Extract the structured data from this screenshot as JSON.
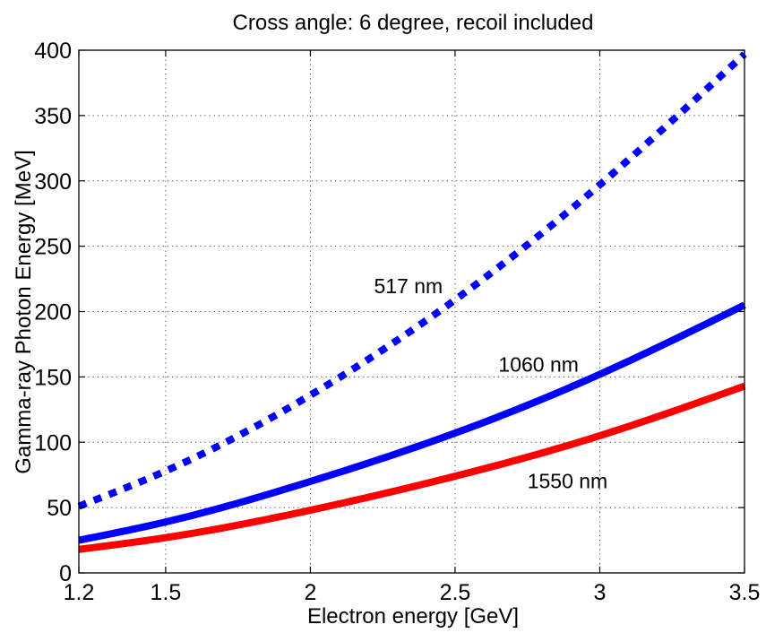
{
  "chart_data": {
    "type": "line",
    "title": "Cross angle: 6 degree, recoil included",
    "xlabel": "Electron energy [GeV]",
    "ylabel": "Gamma-ray Photon Energy [MeV]",
    "xlim": [
      1.2,
      3.5
    ],
    "ylim": [
      0,
      400
    ],
    "xticks": [
      1.2,
      1.5,
      2,
      2.5,
      3,
      3.5
    ],
    "xtick_labels": [
      "1.2",
      "1.5",
      "2",
      "2.5",
      "3",
      "3.5"
    ],
    "yticks": [
      0,
      50,
      100,
      150,
      200,
      250,
      300,
      350,
      400
    ],
    "ytick_labels": [
      "0",
      "50",
      "100",
      "150",
      "200",
      "250",
      "300",
      "350",
      "400"
    ],
    "grid": true,
    "x": [
      1.2,
      1.5,
      2.0,
      2.5,
      3.0,
      3.5
    ],
    "series": [
      {
        "name": "517 nm",
        "color": "#0000ff",
        "style": "dotted",
        "values": [
          51,
          78,
          136,
          209,
          297,
          397
        ],
        "label": "517 nm"
      },
      {
        "name": "1060 nm",
        "color": "#0000ff",
        "style": "solid",
        "values": [
          25,
          39,
          70,
          107,
          152,
          205
        ],
        "label": "1060 nm"
      },
      {
        "name": "1550 nm",
        "color": "#ff0000",
        "style": "solid",
        "values": [
          18,
          27,
          48,
          74,
          105,
          143
        ],
        "label": "1550 nm"
      }
    ]
  }
}
